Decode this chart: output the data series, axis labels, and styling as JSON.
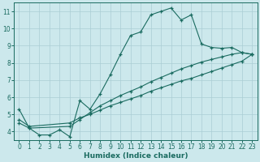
{
  "title": "",
  "xlabel": "Humidex (Indice chaleur)",
  "background_color": "#cce8ec",
  "grid_color": "#aacdd4",
  "line_color": "#1a6b60",
  "xlim": [
    -0.5,
    23.5
  ],
  "ylim": [
    3.5,
    11.5
  ],
  "xticks": [
    0,
    1,
    2,
    3,
    4,
    5,
    6,
    7,
    8,
    9,
    10,
    11,
    12,
    13,
    14,
    15,
    16,
    17,
    18,
    19,
    20,
    21,
    22,
    23
  ],
  "yticks": [
    4,
    5,
    6,
    7,
    8,
    9,
    10,
    11
  ],
  "line1_x": [
    0,
    1,
    2,
    3,
    4,
    5,
    6,
    7,
    8,
    9,
    10,
    11,
    12,
    13,
    14,
    15,
    16,
    17,
    18,
    19,
    20,
    21,
    22,
    23
  ],
  "line1_y": [
    5.3,
    4.2,
    3.8,
    3.8,
    4.1,
    3.7,
    5.8,
    5.3,
    6.2,
    7.3,
    8.5,
    9.6,
    9.8,
    10.8,
    11.0,
    11.2,
    10.5,
    10.8,
    9.1,
    8.9,
    8.85,
    8.9,
    8.6,
    8.5
  ],
  "line2_x": [
    0,
    1,
    5,
    6,
    7,
    8,
    9,
    10,
    11,
    12,
    13,
    14,
    15,
    16,
    17,
    18,
    19,
    20,
    21,
    22,
    23
  ],
  "line2_y": [
    4.5,
    4.2,
    4.3,
    4.7,
    5.1,
    5.5,
    5.8,
    6.1,
    6.35,
    6.6,
    6.9,
    7.15,
    7.4,
    7.65,
    7.85,
    8.05,
    8.2,
    8.35,
    8.5,
    8.6,
    8.5
  ],
  "line3_x": [
    0,
    1,
    5,
    6,
    7,
    8,
    9,
    10,
    11,
    12,
    13,
    14,
    15,
    16,
    17,
    18,
    19,
    20,
    21,
    22,
    23
  ],
  "line3_y": [
    4.7,
    4.3,
    4.5,
    4.8,
    5.0,
    5.25,
    5.5,
    5.7,
    5.9,
    6.1,
    6.35,
    6.55,
    6.75,
    6.95,
    7.1,
    7.3,
    7.5,
    7.7,
    7.9,
    8.1,
    8.5
  ]
}
